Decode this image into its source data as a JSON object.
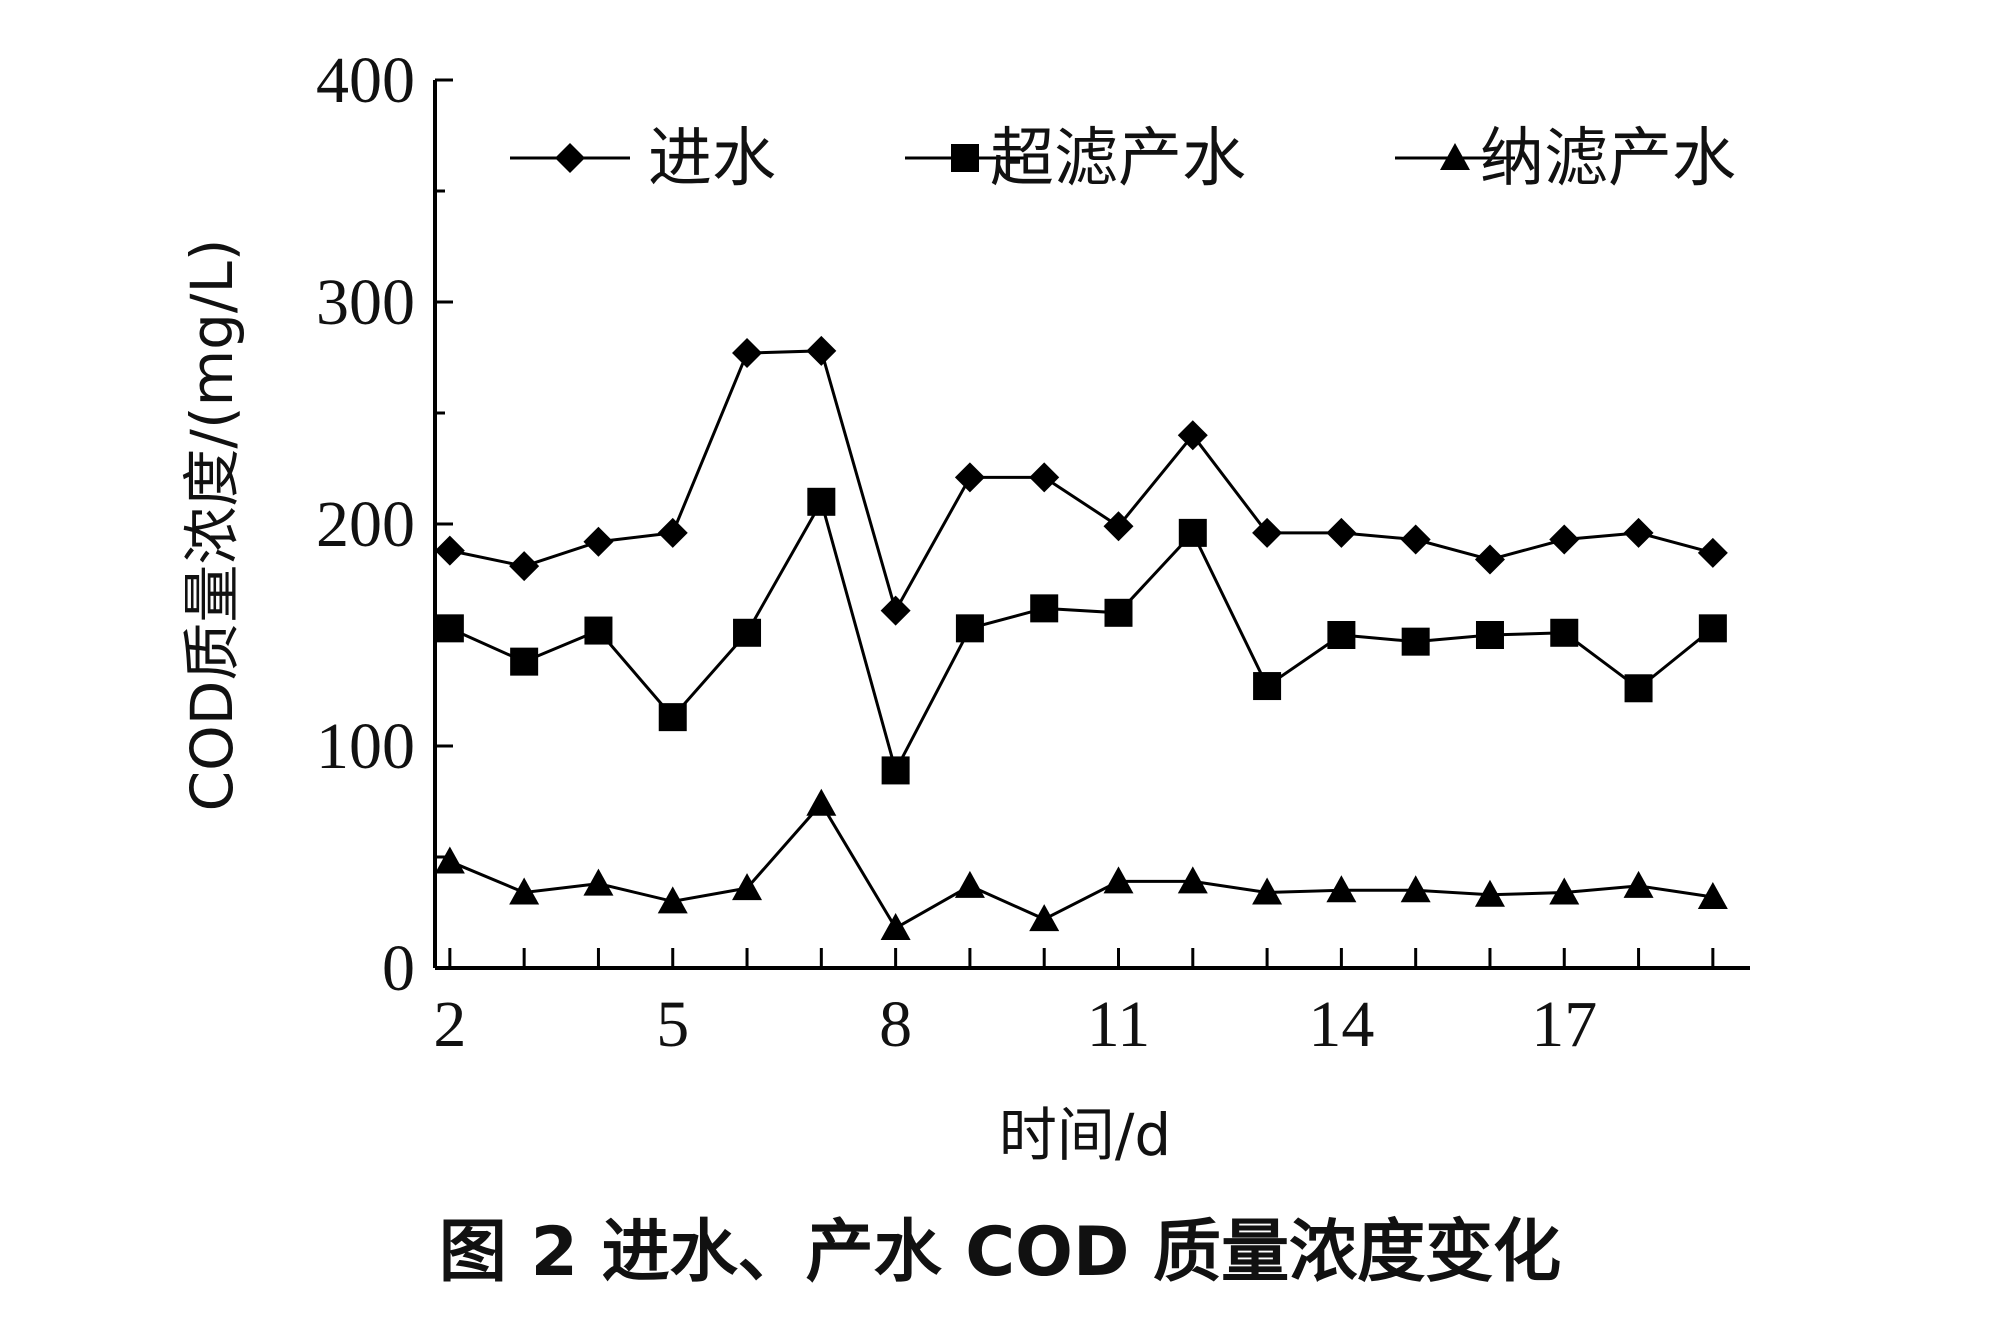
{
  "caption": "图 2   进水、产水 COD 质量浓度变化",
  "chart_data": {
    "type": "line",
    "title": "",
    "xlabel": "时间/d",
    "ylabel": "COD质量浓度/(mg/L)",
    "xlim": [
      1.8,
      19.5
    ],
    "ylim": [
      0,
      400
    ],
    "xticks": [
      2,
      5,
      8,
      11,
      14,
      17
    ],
    "yticks": [
      0,
      100,
      200,
      300,
      400
    ],
    "legend_position": "top",
    "x": [
      2,
      3,
      4,
      5,
      6,
      7,
      8,
      9,
      10,
      11,
      12,
      13,
      14,
      15,
      16,
      17,
      18,
      19
    ],
    "series": [
      {
        "name": "进水",
        "marker": "diamond",
        "values": [
          188,
          181,
          192,
          196,
          277,
          278,
          161,
          221,
          221,
          199,
          240,
          196,
          196,
          193,
          184,
          193,
          196,
          187
        ]
      },
      {
        "name": "超滤产水",
        "marker": "square",
        "values": [
          153,
          138,
          152,
          113,
          151,
          210,
          89,
          153,
          162,
          160,
          196,
          127,
          150,
          147,
          150,
          151,
          126,
          153
        ]
      },
      {
        "name": "纳滤产水",
        "marker": "triangle",
        "values": [
          48,
          34,
          38,
          30,
          36,
          74,
          18,
          37,
          22,
          39,
          39,
          34,
          35,
          35,
          33,
          34,
          37,
          32
        ]
      }
    ]
  }
}
